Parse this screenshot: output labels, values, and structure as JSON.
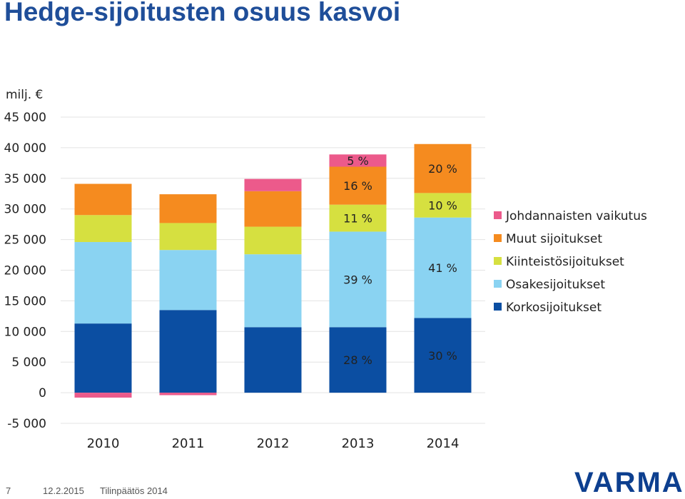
{
  "title": "Hedge-sijoitusten osuus kasvoi",
  "footer": {
    "page_number": "7",
    "date": "12.2.2015",
    "caption": "Tilinpäätös 2014"
  },
  "logo_text": "VARMA",
  "chart_data": {
    "type": "bar",
    "stacked": true,
    "unit_label": "milj. €",
    "categories": [
      "2010",
      "2011",
      "2012",
      "2013",
      "2014"
    ],
    "ylim": [
      -5000,
      45000
    ],
    "yticks": [
      -5000,
      0,
      5000,
      10000,
      15000,
      20000,
      25000,
      30000,
      35000,
      40000,
      45000
    ],
    "ytick_labels": [
      "-5 000",
      "0",
      "5 000",
      "10 000",
      "15 000",
      "20 000",
      "25 000",
      "30 000",
      "35 000",
      "40 000",
      "45 000"
    ],
    "grid": true,
    "legend_position": "right",
    "series": [
      {
        "name": "Johdannaisten vaikutus",
        "color": "#ec5a8b",
        "values": [
          -800,
          -400,
          2000,
          2000,
          0
        ]
      },
      {
        "name": "Muut sijoitukset",
        "color": "#f58b1f",
        "values": [
          5100,
          4700,
          5800,
          6200,
          8000
        ]
      },
      {
        "name": "Kiinteistösijoitukset",
        "color": "#d6e040",
        "values": [
          4400,
          4400,
          4500,
          4400,
          4000
        ]
      },
      {
        "name": "Osakesijoitukset",
        "color": "#8ad3f2",
        "values": [
          13300,
          9800,
          11900,
          15600,
          16400
        ]
      },
      {
        "name": "Korkosijoitukset",
        "color": "#0b4ea2",
        "values": [
          11300,
          13500,
          10700,
          10700,
          12200
        ]
      }
    ],
    "annotations": [
      {
        "category": "2013",
        "series": "Johdannaisten vaikutus",
        "text": "5 %"
      },
      {
        "category": "2013",
        "series": "Muut sijoitukset",
        "text": "16 %"
      },
      {
        "category": "2013",
        "series": "Kiinteistösijoitukset",
        "text": "11 %"
      },
      {
        "category": "2013",
        "series": "Osakesijoitukset",
        "text": "39 %"
      },
      {
        "category": "2013",
        "series": "Korkosijoitukset",
        "text": "28 %"
      },
      {
        "category": "2014",
        "series": "Muut sijoitukset",
        "text": "20 %"
      },
      {
        "category": "2014",
        "series": "Kiinteistösijoitukset",
        "text": "10 %"
      },
      {
        "category": "2014",
        "series": "Osakesijoitukset",
        "text": "41 %"
      },
      {
        "category": "2014",
        "series": "Korkosijoitukset",
        "text": "30 %"
      }
    ]
  }
}
